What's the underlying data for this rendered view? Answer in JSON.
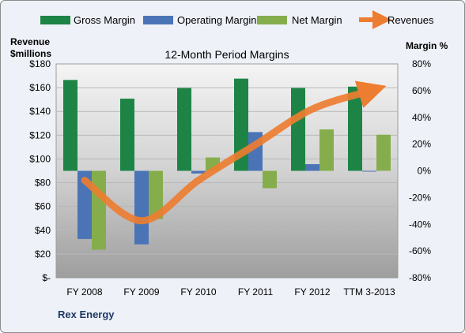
{
  "chart_data": {
    "type": "bar",
    "title": "12-Month Period Margins",
    "company": "Rex Energy",
    "categories": [
      "FY 2008",
      "FY 2009",
      "FY 2010",
      "FY 2011",
      "FY 2012",
      "TTM 3-2013"
    ],
    "series": [
      {
        "name": "Gross Margin",
        "axis": "right",
        "unit": "%",
        "values": [
          68,
          54,
          62,
          69,
          62,
          63
        ],
        "color": "#1e8446"
      },
      {
        "name": "Operating Margin",
        "axis": "right",
        "unit": "%",
        "values": [
          -51,
          -55,
          -2,
          29,
          5,
          0
        ],
        "color": "#4a74b6"
      },
      {
        "name": "Net Margin",
        "axis": "right",
        "unit": "%",
        "values": [
          -59,
          -36,
          10,
          -13,
          31,
          27
        ],
        "color": "#86ad4c"
      },
      {
        "name": "Revenues",
        "axis": "left",
        "unit": "$millions",
        "values": [
          82,
          48,
          82,
          112,
          142,
          157
        ],
        "color": "#ed7d31",
        "style": "arrow-line"
      }
    ],
    "left_axis": {
      "title_line1": "Revenue",
      "title_line2": "$millions",
      "range": [
        0,
        180
      ],
      "ticks": [
        "$-",
        "$20",
        "$40",
        "$60",
        "$80",
        "$100",
        "$120",
        "$140",
        "$160",
        "$180"
      ]
    },
    "right_axis": {
      "title": "Margin %",
      "range": [
        -80,
        80
      ],
      "ticks": [
        "-80%",
        "-60%",
        "-40%",
        "-20%",
        "0%",
        "20%",
        "40%",
        "60%",
        "80%"
      ]
    },
    "grid": true,
    "legend_position": "top"
  }
}
